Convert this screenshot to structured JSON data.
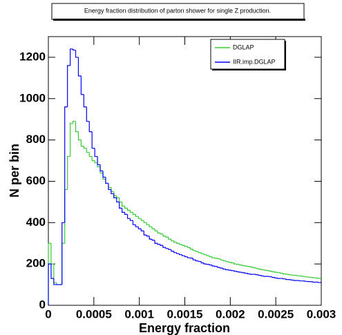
{
  "chart_data": {
    "type": "histogram",
    "title": "Energy fraction distribution of parton shower for single Z production.",
    "x_label": "Energy fraction",
    "y_label": "N per bin",
    "xlim": [
      0,
      0.003
    ],
    "ylim": [
      0,
      1300
    ],
    "xticks": [
      0,
      0.0005,
      0.001,
      0.0015,
      0.002,
      0.0025,
      0.003
    ],
    "yticks": [
      0,
      200,
      400,
      600,
      800,
      1000,
      1200
    ],
    "legend": "upper right",
    "bins": [
      0,
      3e-05,
      6e-05,
      9e-05,
      0.00012,
      0.00015,
      0.00018,
      0.00021,
      0.00024,
      0.00027,
      0.0003,
      0.00033,
      0.00036,
      0.00039,
      0.00042,
      0.00045,
      0.00048,
      0.00051,
      0.00054,
      0.00057,
      0.0006,
      0.00063,
      0.00066,
      0.00069,
      0.00072,
      0.00075,
      0.00078,
      0.00081,
      0.00084,
      0.00087,
      0.0009,
      0.00093,
      0.00096,
      0.00099,
      0.00102,
      0.00105,
      0.00108,
      0.00111,
      0.00114,
      0.00117,
      0.0012,
      0.00123,
      0.00126,
      0.00129,
      0.00132,
      0.00135,
      0.00138,
      0.00141,
      0.00144,
      0.00147,
      0.0015,
      0.00153,
      0.00156,
      0.00159,
      0.00162,
      0.00165,
      0.00168,
      0.00171,
      0.00174,
      0.00177,
      0.0018,
      0.00183,
      0.00186,
      0.00189,
      0.00192,
      0.00195,
      0.00198,
      0.00201,
      0.00204,
      0.00207,
      0.0021,
      0.00213,
      0.00216,
      0.00219,
      0.00222,
      0.00225,
      0.00228,
      0.00231,
      0.00234,
      0.00237,
      0.0024,
      0.00243,
      0.00246,
      0.00249,
      0.00252,
      0.00255,
      0.00258,
      0.00261,
      0.00264,
      0.00267,
      0.0027,
      0.00273,
      0.00276,
      0.00279,
      0.00282,
      0.00285,
      0.00288,
      0.00291,
      0.00294,
      0.00297,
      0.003
    ],
    "series": [
      {
        "name": "DGLAP",
        "color": "#33cc33",
        "values": [
          300,
          200,
          110,
          100,
          100,
          300,
          560,
          720,
          880,
          890,
          840,
          800,
          770,
          760,
          740,
          720,
          700,
          690,
          670,
          640,
          610,
          590,
          570,
          550,
          530,
          520,
          500,
          480,
          470,
          460,
          450,
          440,
          430,
          420,
          410,
          400,
          390,
          380,
          370,
          360,
          350,
          345,
          335,
          330,
          320,
          312,
          305,
          300,
          295,
          290,
          285,
          280,
          272,
          265,
          260,
          255,
          250,
          245,
          240,
          235,
          230,
          228,
          225,
          220,
          215,
          212,
          208,
          205,
          200,
          198,
          195,
          192,
          190,
          188,
          185,
          182,
          178,
          175,
          172,
          170,
          168,
          165,
          162,
          160,
          158,
          155,
          152,
          150,
          148,
          146,
          145,
          143,
          142,
          140,
          138,
          136,
          135,
          133,
          132,
          130
        ]
      },
      {
        "name": "IIR.imp.DGLAP",
        "color": "#0000ff",
        "values": [
          200,
          130,
          100,
          100,
          100,
          400,
          960,
          1160,
          1240,
          1235,
          1200,
          1110,
          1020,
          960,
          890,
          840,
          760,
          720,
          680,
          650,
          620,
          590,
          560,
          540,
          520,
          500,
          470,
          450,
          440,
          420,
          410,
          390,
          380,
          370,
          360,
          340,
          335,
          320,
          315,
          300,
          295,
          290,
          280,
          275,
          270,
          262,
          255,
          250,
          245,
          240,
          235,
          230,
          228,
          220,
          215,
          212,
          205,
          200,
          198,
          195,
          190,
          188,
          183,
          180,
          175,
          172,
          170,
          168,
          165,
          162,
          160,
          158,
          155,
          152,
          150,
          150,
          148,
          145,
          142,
          140,
          140,
          138,
          135,
          132,
          130,
          130,
          128,
          125,
          124,
          122,
          120,
          120,
          118,
          118,
          116,
          115,
          114,
          112,
          112,
          110
        ]
      }
    ]
  }
}
